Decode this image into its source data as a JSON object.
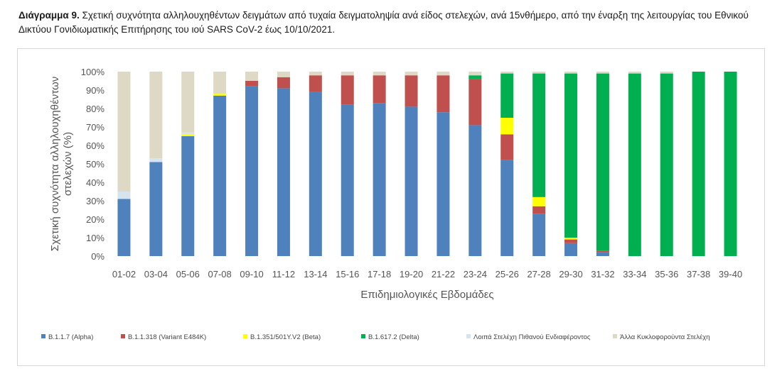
{
  "caption": {
    "label": "Διάγραμμα 9.",
    "text": "Σχετική συχνότητα αλληλουχηθέντων δειγμάτων από τυχαία δειγματοληψία ανά είδος στελεχών, ανά 15νθήμερο, από την έναρξη της λειτουργίας του Εθνικού Δικτύου Γονιδιωματικής Επιτήρησης του ιού SARS CoV-2 έως 10/10/2021."
  },
  "chart_data": {
    "type": "bar",
    "stacked": true,
    "xlabel": "Επιδημιολογικές Εβδομάδες",
    "ylabel": "Σχετική συχνότητα αλληλουχηθέντων στελεχών (%)",
    "ylim": [
      0,
      100
    ],
    "yticks": [
      "0%",
      "10%",
      "20%",
      "30%",
      "40%",
      "50%",
      "60%",
      "70%",
      "80%",
      "90%",
      "100%"
    ],
    "grid": false,
    "legend_position": "bottom",
    "categories": [
      "01-02",
      "03-04",
      "05-06",
      "07-08",
      "09-10",
      "11-12",
      "13-14",
      "15-16",
      "17-18",
      "19-20",
      "21-22",
      "23-24",
      "25-26",
      "27-28",
      "29-30",
      "31-32",
      "33-34",
      "35-36",
      "37-38",
      "39-40"
    ],
    "series": [
      {
        "name": "B.1.1.7 (Alpha)",
        "color": "#4f81bd",
        "values": [
          31,
          51,
          65,
          87,
          92,
          91,
          89,
          82,
          83,
          81,
          78,
          71,
          52,
          23,
          7,
          2,
          0,
          0,
          0,
          0
        ]
      },
      {
        "name": "B.1.1.318 (Variant E484K)",
        "color": "#c0504d",
        "values": [
          0,
          0,
          0,
          0,
          3,
          6,
          9,
          16,
          15,
          17,
          20,
          25,
          14,
          4,
          2,
          1,
          0,
          0,
          0,
          0
        ]
      },
      {
        "name": "B.1.351/501Y.V2 (Beta)",
        "color": "#ffff00",
        "values": [
          0,
          0,
          1,
          1,
          0,
          0,
          0,
          0,
          0,
          0,
          0,
          0,
          9,
          5,
          1,
          0,
          0,
          0,
          0,
          0
        ]
      },
      {
        "name": "B.1.617.2 (Delta)",
        "color": "#00b050",
        "values": [
          0,
          0,
          0,
          0,
          0,
          0,
          0,
          0,
          0,
          0,
          0,
          2,
          24,
          67,
          89,
          96,
          99,
          99,
          100,
          100
        ]
      },
      {
        "name": "Λοιπά Στελέχη Πιθανού Ενδιαφέροντος",
        "color": "#d6e4f0",
        "values": [
          4,
          2,
          1,
          0,
          0,
          0,
          0,
          0,
          0,
          0,
          0,
          0,
          0,
          0,
          0,
          0,
          0,
          0,
          0,
          0
        ]
      },
      {
        "name": "Άλλα Κυκλοφορούντα Στελέχη",
        "color": "#ddd9c4",
        "values": [
          65,
          47,
          33,
          12,
          5,
          3,
          2,
          2,
          2,
          2,
          2,
          2,
          1,
          1,
          1,
          1,
          1,
          1,
          0,
          0
        ]
      }
    ]
  }
}
